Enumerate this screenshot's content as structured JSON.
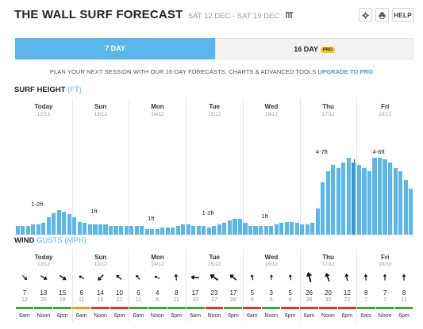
{
  "header": {
    "title": "THE WALL SURF FORECAST",
    "date_range": "SAT 12 DEC - SAT 19 DEC",
    "settings_icon": "gear-icon",
    "print_icon": "printer-icon",
    "calendar_icon": "calendar-icon",
    "help_label": "HELP"
  },
  "tabs": {
    "tab_7": "7 DAY",
    "tab_16": "16 DAY",
    "pro_badge": "PRO",
    "selected": "7 DAY"
  },
  "promo": {
    "text": "PLAN YOUR NEXT SESSION WITH OUR 16-DAY FORECASTS, CHARTS & ADVANCED TOOLS",
    "link": "UPGRADE TO PRO"
  },
  "days": [
    {
      "name": "Today",
      "date": "12/12"
    },
    {
      "name": "Sun",
      "date": "13/12"
    },
    {
      "name": "Mon",
      "date": "14/12"
    },
    {
      "name": "Tue",
      "date": "15/12"
    },
    {
      "name": "Wed",
      "date": "16/12"
    },
    {
      "name": "Thu",
      "date": "17/12"
    },
    {
      "name": "Fri",
      "date": "18/12"
    }
  ],
  "surf": {
    "section_title": "SURF HEIGHT",
    "unit": "(FT)",
    "max_ft": 8,
    "bars": [
      0.6,
      0.6,
      0.6,
      0.7,
      0.7,
      0.8,
      1.2,
      1.5,
      1.7,
      1.6,
      1.4,
      1.2,
      0.9,
      0.8,
      0.7,
      0.7,
      0.7,
      0.7,
      0.6,
      0.6,
      0.6,
      0.6,
      0.6,
      0.6,
      0.6,
      0.4,
      0.4,
      0.4,
      0.5,
      0.5,
      0.5,
      0.6,
      0.7,
      0.7,
      0.6,
      0.6,
      0.6,
      0.5,
      0.6,
      0.7,
      0.8,
      1.0,
      1.1,
      1.1,
      0.8,
      0.6,
      0.6,
      0.6,
      0.6,
      0.6,
      0.7,
      0.8,
      0.9,
      0.9,
      0.8,
      0.7,
      0.7,
      0.8,
      1.8,
      3.6,
      4.4,
      4.8,
      4.6,
      5.0,
      5.3,
      5.0,
      4.8,
      4.6,
      4.4,
      5.3,
      5.3,
      5.2,
      5.0,
      4.6,
      4.4,
      3.8,
      3.2
    ],
    "highlight_index": 65,
    "labels": [
      {
        "day": 0,
        "text": "1-2ft"
      },
      {
        "day": 1,
        "text": "1ft"
      },
      {
        "day": 2,
        "text": "1ft"
      },
      {
        "day": 3,
        "text": "1-2ft"
      },
      {
        "day": 4,
        "text": "1ft"
      },
      {
        "day": 5,
        "text": "4-7ft"
      },
      {
        "day": 6,
        "text": "4-6ft"
      }
    ]
  },
  "wind": {
    "section_title": "WIND",
    "gusts_label": "GUSTS",
    "unit": "(MPH)",
    "times": [
      "6am",
      "Noon",
      "6pm"
    ],
    "entries": [
      {
        "speed": 7,
        "gust": 12,
        "dir": 315,
        "color": "#3aaa35"
      },
      {
        "speed": 13,
        "gust": 20,
        "dir": 300,
        "color": "#3aaa35"
      },
      {
        "speed": 15,
        "gust": 18,
        "dir": 305,
        "color": "#3aaa35"
      },
      {
        "speed": 6,
        "gust": 11,
        "dir": 120,
        "color": "#f0a30a"
      },
      {
        "speed": 14,
        "gust": 16,
        "dir": 45,
        "color": "#e2352c"
      },
      {
        "speed": 10,
        "gust": 27,
        "dir": 130,
        "color": "#e2352c"
      },
      {
        "speed": 6,
        "gust": 11,
        "dir": 140,
        "color": "#3aaa35"
      },
      {
        "speed": 4,
        "gust": 6,
        "dir": 115,
        "color": "#3aaa35"
      },
      {
        "speed": 8,
        "gust": 11,
        "dir": 175,
        "color": "#3aaa35"
      },
      {
        "speed": 17,
        "gust": 33,
        "dir": 95,
        "color": "#3aaa35"
      },
      {
        "speed": 23,
        "gust": 37,
        "dir": 125,
        "color": "#e2352c"
      },
      {
        "speed": 17,
        "gust": 28,
        "dir": 130,
        "color": "#3aaa35"
      },
      {
        "speed": 5,
        "gust": 6,
        "dir": 165,
        "color": "#e2352c"
      },
      {
        "speed": 3,
        "gust": 5,
        "dir": 180,
        "color": "#3aaa35"
      },
      {
        "speed": 5,
        "gust": 8,
        "dir": 170,
        "color": "#e2352c"
      },
      {
        "speed": 26,
        "gust": 36,
        "dir": 165,
        "color": "#e2352c"
      },
      {
        "speed": 20,
        "gust": 30,
        "dir": 160,
        "color": "#e2352c"
      },
      {
        "speed": 12,
        "gust": 22,
        "dir": 170,
        "color": "#e2352c"
      },
      {
        "speed": 8,
        "gust": 7,
        "dir": 175,
        "color": "#3aaa35"
      },
      {
        "speed": 7,
        "gust": 7,
        "dir": 180,
        "color": "#3aaa35"
      },
      {
        "speed": 8,
        "gust": 11,
        "dir": 180,
        "color": "#3aaa35"
      }
    ]
  }
}
